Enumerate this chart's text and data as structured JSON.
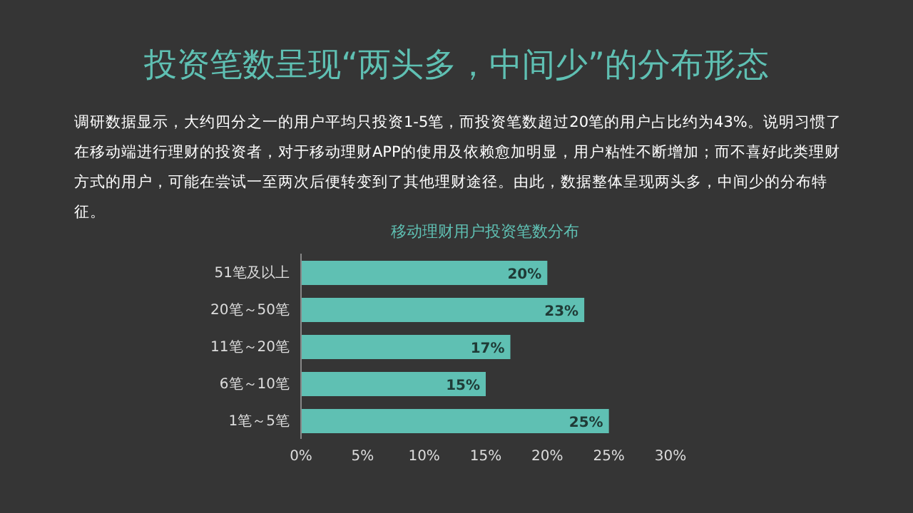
{
  "chart_data": {
    "type": "bar",
    "orientation": "horizontal",
    "title": "投资笔数呈现“两头多，中间少”的分布形态",
    "subtitle": "调研数据显示，大约四分之一的用户平均只投资1-5笔，而投资笔数超过20笔的用户占比约为43%。说明习惯了在移动端进行理财的投资者，对于移动理财APP的使用及依赖愈加明显，用户粘性不断增加；而不喜好此类理财方式的用户，可能在尝试一至两次后便转变到了其他理财途径。由此，数据整体呈现两头多，中间少的分布特征。",
    "annotations": [
      "移动理财用户投资笔数分布"
    ],
    "categories": [
      "51笔及以上",
      "20笔～50笔",
      "11笔～20笔",
      "6笔～10笔",
      "1笔～5笔"
    ],
    "values": [
      20,
      23,
      17,
      15,
      25
    ],
    "value_labels": [
      "20%",
      "23%",
      "17%",
      "15%",
      "25%"
    ],
    "color": "#5fc0b3",
    "xlim": [
      0,
      30
    ],
    "xticks": [
      {
        "value": 0,
        "label": "0%"
      },
      {
        "value": 5,
        "label": "5%"
      },
      {
        "value": 10,
        "label": "10%"
      },
      {
        "value": 15,
        "label": "15%"
      },
      {
        "value": 20,
        "label": "20%"
      },
      {
        "value": 25,
        "label": "25%"
      },
      {
        "value": 30,
        "label": "30%"
      }
    ],
    "grid": false,
    "legend": false
  }
}
